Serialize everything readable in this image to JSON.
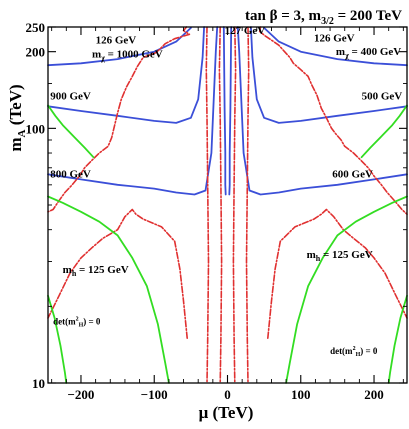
{
  "chart_data": {
    "type": "contour",
    "title": "tan β = 3, m3/2 = 200 TeV",
    "title_parts": {
      "prefix": "tan β = 3, m",
      "sub": "3/2",
      "suffix": " = 200 TeV"
    },
    "xlabel": "μ  (TeV)",
    "ylabel_main": "m",
    "ylabel_sub": "A",
    "ylabel_unit": " (TeV)",
    "xlim": [
      -245,
      245
    ],
    "ylim": [
      10,
      250
    ],
    "y_scale": "log",
    "x_ticks": [
      -200,
      -100,
      0,
      100,
      200
    ],
    "x_tick_labels": [
      "−200",
      "−100",
      "0",
      "100",
      "200"
    ],
    "y_ticks": [
      10,
      100,
      200,
      250
    ],
    "y_tick_labels": [
      "10",
      "100",
      "200",
      "250"
    ],
    "grid": false,
    "colors": {
      "chargino": "#3b4fd8",
      "higgs": "#e03030",
      "mh_green": "#33dd22",
      "axis": "#000000"
    },
    "series": [
      {
        "kind": "chargino_mass",
        "points": [
          [
            -245,
            177
          ],
          [
            -200,
            180
          ],
          [
            -150,
            187
          ],
          [
            -100,
            200
          ],
          [
            -70,
            219
          ],
          [
            -50,
            248
          ]
        ]
      },
      {
        "kind": "chargino_mass",
        "points": [
          [
            50,
            248
          ],
          [
            70,
            219
          ],
          [
            100,
            200
          ],
          [
            150,
            187
          ],
          [
            200,
            180
          ],
          [
            245,
            177
          ]
        ]
      },
      {
        "kind": "chargino_mass",
        "points": [
          [
            -245,
            122
          ],
          [
            -200,
            117
          ],
          [
            -150,
            112
          ],
          [
            -100,
            107
          ],
          [
            -70,
            105
          ],
          [
            -50,
            110
          ],
          [
            -40,
            130
          ],
          [
            -34,
            190
          ],
          [
            -32,
            250
          ]
        ]
      },
      {
        "kind": "chargino_mass",
        "points": [
          [
            32,
            250
          ],
          [
            34,
            190
          ],
          [
            40,
            130
          ],
          [
            50,
            110
          ],
          [
            70,
            105
          ],
          [
            100,
            107
          ],
          [
            150,
            112
          ],
          [
            200,
            117
          ],
          [
            245,
            122
          ]
        ]
      },
      {
        "kind": "chargino_mass",
        "points": [
          [
            -245,
            66
          ],
          [
            -200,
            63
          ],
          [
            -150,
            60
          ],
          [
            -100,
            58
          ],
          [
            -70,
            56
          ],
          [
            -45,
            55
          ],
          [
            -30,
            57
          ],
          [
            -22,
            80
          ],
          [
            -16,
            200
          ],
          [
            -14,
            250
          ]
        ]
      },
      {
        "kind": "chargino_mass",
        "points": [
          [
            14,
            250
          ],
          [
            16,
            200
          ],
          [
            22,
            80
          ],
          [
            30,
            57
          ],
          [
            45,
            55
          ],
          [
            70,
            56
          ],
          [
            100,
            58
          ],
          [
            150,
            60
          ],
          [
            200,
            63
          ],
          [
            245,
            66
          ]
        ]
      },
      {
        "kind": "chargino_mass",
        "points": [
          [
            -5,
            250
          ],
          [
            -4,
            120
          ],
          [
            -3,
            80
          ],
          [
            -3,
            60
          ],
          [
            -2.5,
            55
          ]
        ]
      },
      {
        "kind": "chargino_mass",
        "points": [
          [
            5,
            250
          ],
          [
            4,
            120
          ],
          [
            3,
            80
          ],
          [
            3,
            60
          ],
          [
            2.5,
            55
          ]
        ]
      },
      {
        "kind": "higgs_mass",
        "points": [
          [
            -56,
            250
          ],
          [
            -60,
            242
          ],
          [
            -52,
            234
          ],
          [
            -72,
            225
          ],
          [
            -85,
            215
          ],
          [
            -92,
            205
          ],
          [
            -98,
            198
          ],
          [
            -115,
            190
          ],
          [
            -123,
            175
          ],
          [
            -130,
            160
          ],
          [
            -138,
            145
          ],
          [
            -145,
            130
          ],
          [
            -150,
            115
          ],
          [
            -155,
            100
          ],
          [
            -158,
            92
          ],
          [
            -163,
            85
          ],
          [
            -175,
            80
          ],
          [
            -185,
            75
          ],
          [
            -195,
            70
          ],
          [
            -202,
            65
          ],
          [
            -212,
            60
          ],
          [
            -222,
            56
          ],
          [
            -230,
            52
          ],
          [
            -238,
            48
          ],
          [
            -245,
            47
          ]
        ]
      },
      {
        "kind": "higgs_mass",
        "points": [
          [
            -55,
            15
          ],
          [
            -60,
            21
          ],
          [
            -65,
            28
          ],
          [
            -72,
            36
          ],
          [
            -90,
            41
          ],
          [
            -115,
            44
          ],
          [
            -125,
            46
          ],
          [
            -130,
            48
          ],
          [
            -140,
            45
          ],
          [
            -150,
            40
          ],
          [
            -170,
            37
          ],
          [
            -185,
            34
          ],
          [
            -200,
            31
          ],
          [
            -215,
            27
          ],
          [
            -230,
            22
          ],
          [
            -245,
            18
          ]
        ]
      },
      {
        "kind": "higgs_mass",
        "points": [
          [
            45,
            250
          ],
          [
            44,
            240
          ],
          [
            52,
            230
          ],
          [
            62,
            220
          ],
          [
            70,
            212
          ],
          [
            78,
            200
          ],
          [
            85,
            190
          ],
          [
            90,
            180
          ],
          [
            100,
            170
          ],
          [
            110,
            160
          ],
          [
            115,
            148
          ],
          [
            122,
            135
          ],
          [
            128,
            120
          ],
          [
            135,
            110
          ],
          [
            142,
            100
          ],
          [
            148,
            95
          ],
          [
            155,
            90
          ],
          [
            160,
            85
          ],
          [
            172,
            80
          ],
          [
            182,
            75
          ],
          [
            192,
            70
          ],
          [
            200,
            65
          ],
          [
            210,
            60
          ],
          [
            218,
            56
          ],
          [
            228,
            52
          ],
          [
            238,
            48
          ],
          [
            245,
            46
          ]
        ]
      },
      {
        "kind": "higgs_mass",
        "points": [
          [
            55,
            15
          ],
          [
            60,
            21
          ],
          [
            65,
            28
          ],
          [
            72,
            36
          ],
          [
            92,
            41
          ],
          [
            118,
            44
          ],
          [
            128,
            46
          ],
          [
            135,
            48
          ],
          [
            145,
            45
          ],
          [
            158,
            40
          ],
          [
            172,
            37
          ],
          [
            188,
            34
          ],
          [
            200,
            31
          ],
          [
            215,
            27
          ],
          [
            230,
            22
          ],
          [
            245,
            18
          ]
        ]
      },
      {
        "kind": "higgs_mass",
        "points": [
          [
            -28,
            250
          ],
          [
            -29,
            170
          ],
          [
            -28,
            110
          ],
          [
            -27,
            60
          ],
          [
            -26,
            30
          ],
          [
            -27,
            15
          ],
          [
            -28,
            10
          ]
        ]
      },
      {
        "kind": "higgs_mass",
        "points": [
          [
            -10,
            250
          ],
          [
            -11,
            170
          ],
          [
            -10,
            110
          ],
          [
            -9,
            60
          ],
          [
            -8,
            30
          ],
          [
            -9,
            15
          ],
          [
            -10,
            10
          ]
        ]
      },
      {
        "kind": "higgs_mass",
        "points": [
          [
            10,
            250
          ],
          [
            11,
            170
          ],
          [
            10,
            110
          ],
          [
            9,
            60
          ],
          [
            8,
            30
          ],
          [
            9,
            15
          ],
          [
            10,
            10
          ]
        ]
      },
      {
        "kind": "higgs_mass",
        "points": [
          [
            28,
            250
          ],
          [
            29,
            170
          ],
          [
            28,
            110
          ],
          [
            27,
            60
          ],
          [
            26,
            30
          ],
          [
            27,
            15
          ],
          [
            28,
            10
          ]
        ]
      },
      {
        "kind": "mh_green",
        "points": [
          [
            -245,
            123
          ],
          [
            -235,
            112
          ],
          [
            -225,
            103
          ],
          [
            -210,
            93
          ],
          [
            -195,
            84
          ],
          [
            -183,
            77
          ]
        ]
      },
      {
        "kind": "mh_green",
        "points": [
          [
            183,
            77
          ],
          [
            195,
            84
          ],
          [
            210,
            93
          ],
          [
            225,
            103
          ],
          [
            235,
            112
          ],
          [
            245,
            123
          ]
        ]
      },
      {
        "kind": "mh_green",
        "points": [
          [
            -245,
            54
          ],
          [
            -225,
            51
          ],
          [
            -200,
            47
          ],
          [
            -175,
            43
          ],
          [
            -150,
            38
          ],
          [
            -130,
            31
          ],
          [
            -110,
            24
          ],
          [
            -95,
            17
          ],
          [
            -85,
            12
          ],
          [
            -80,
            10
          ]
        ]
      },
      {
        "kind": "mh_green",
        "points": [
          [
            80,
            10
          ],
          [
            85,
            12
          ],
          [
            95,
            17
          ],
          [
            110,
            24
          ],
          [
            130,
            31
          ],
          [
            150,
            38
          ],
          [
            175,
            43
          ],
          [
            200,
            47
          ],
          [
            225,
            51
          ],
          [
            245,
            54
          ]
        ]
      },
      {
        "kind": "mh_green",
        "points": [
          [
            -245,
            22
          ],
          [
            -236,
            18
          ],
          [
            -228,
            14
          ],
          [
            -222,
            11
          ],
          [
            -220,
            10
          ]
        ]
      },
      {
        "kind": "mh_green",
        "points": [
          [
            220,
            10
          ],
          [
            222,
            11
          ],
          [
            228,
            14
          ],
          [
            236,
            18
          ],
          [
            245,
            22
          ]
        ]
      }
    ],
    "annotations": [
      {
        "text": "127 GeV",
        "x": -4,
        "y": 235
      },
      {
        "text": "126 GeV",
        "x": -180,
        "y": 215
      },
      {
        "text": "126 GeV",
        "x": 118,
        "y": 219
      },
      {
        "text": "1000 GeV",
        "x": -185,
        "y": 190,
        "prefix": "m",
        "sub": "χ"
      },
      {
        "text": "400 GeV",
        "x": 148,
        "y": 194,
        "prefix": "m",
        "sub": "χ"
      },
      {
        "text": "900 GeV",
        "x": -242,
        "y": 130
      },
      {
        "text": "500 GeV",
        "x": 183,
        "y": 130
      },
      {
        "text": "800 GeV",
        "x": -242,
        "y": 64
      },
      {
        "text": "600 GeV",
        "x": 143,
        "y": 64
      },
      {
        "text": "125 GeV",
        "x": -225,
        "y": 27,
        "prefix": "m",
        "sub": "h"
      },
      {
        "text": "125 GeV",
        "x": 108,
        "y": 31,
        "prefix": "m",
        "sub": "h"
      },
      {
        "text": "det(m",
        "x": -238,
        "y": 17,
        "sub": "2",
        "subsub": "H",
        "suffix": ") = 0"
      },
      {
        "text": "det(m",
        "x": 140,
        "y": 13,
        "sub": "2",
        "subsub": "H",
        "suffix": ") = 0"
      }
    ]
  }
}
